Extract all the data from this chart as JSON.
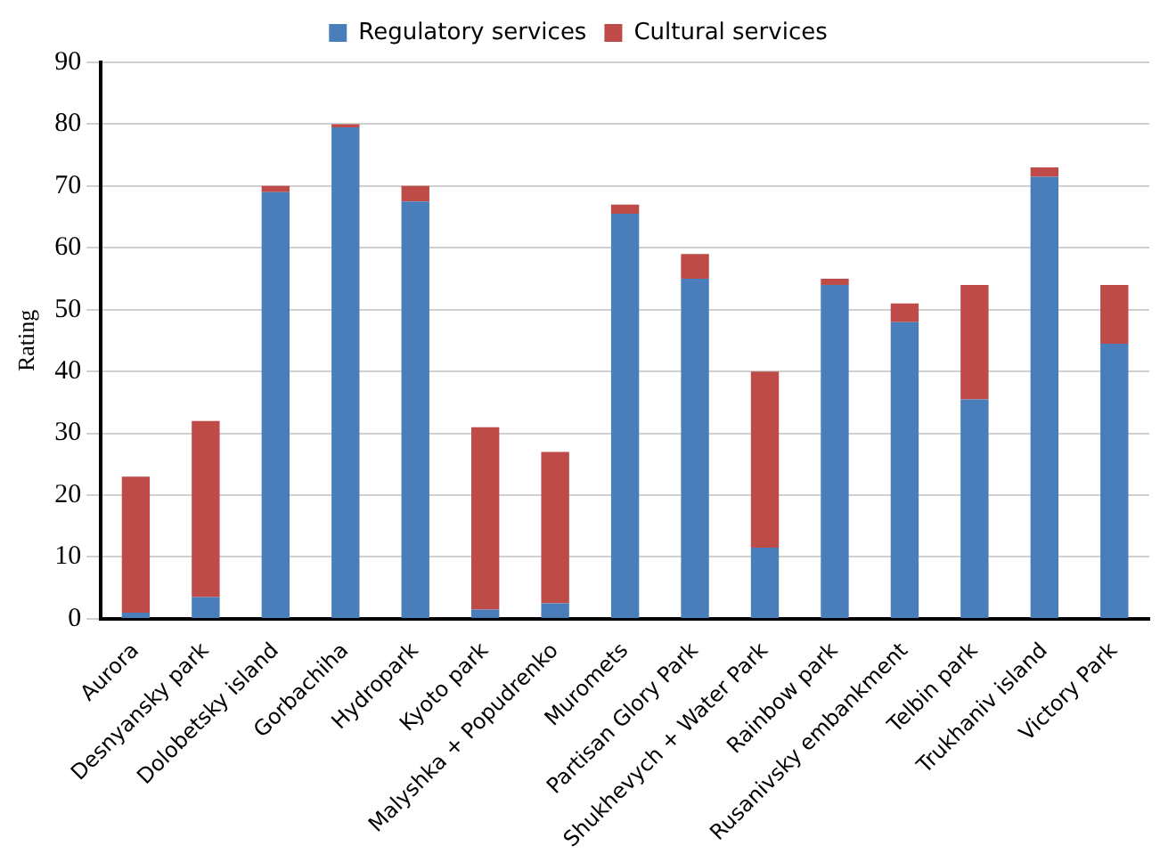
{
  "chart_data": {
    "type": "bar",
    "ylabel": "Rating",
    "stacked": true,
    "categories": [
      "Aurora",
      "Desnyansky park",
      "Dolobetsky island",
      "Gorbachiha",
      "Hydropark",
      "Kyoto park",
      "Malyshka + Popudrenko",
      "Muromets",
      "Partisan Glory Park",
      "Shukhevych + Water Park",
      "Rainbow park",
      "Rusanivsky embankment",
      "Telbin park",
      "Trukhaniv island",
      "Victory Park"
    ],
    "series": [
      {
        "name": "Regulatory services",
        "color": "#4a7ebb",
        "values": [
          1,
          3.5,
          69,
          79.5,
          67.5,
          1.5,
          2.5,
          65.5,
          55,
          11.5,
          54,
          48,
          35.5,
          71.5,
          44.5
        ]
      },
      {
        "name": "Cultural services",
        "color": "#be4b48",
        "values": [
          22,
          28.5,
          1,
          0.5,
          2.5,
          29.5,
          24.5,
          1.5,
          4,
          28.5,
          1,
          3,
          18.5,
          1.5,
          9.5
        ]
      }
    ],
    "ylim": [
      0,
      90
    ],
    "yticks": [
      0,
      10,
      20,
      30,
      40,
      50,
      60,
      70,
      80,
      90
    ],
    "grid": "y",
    "legend": "top"
  }
}
